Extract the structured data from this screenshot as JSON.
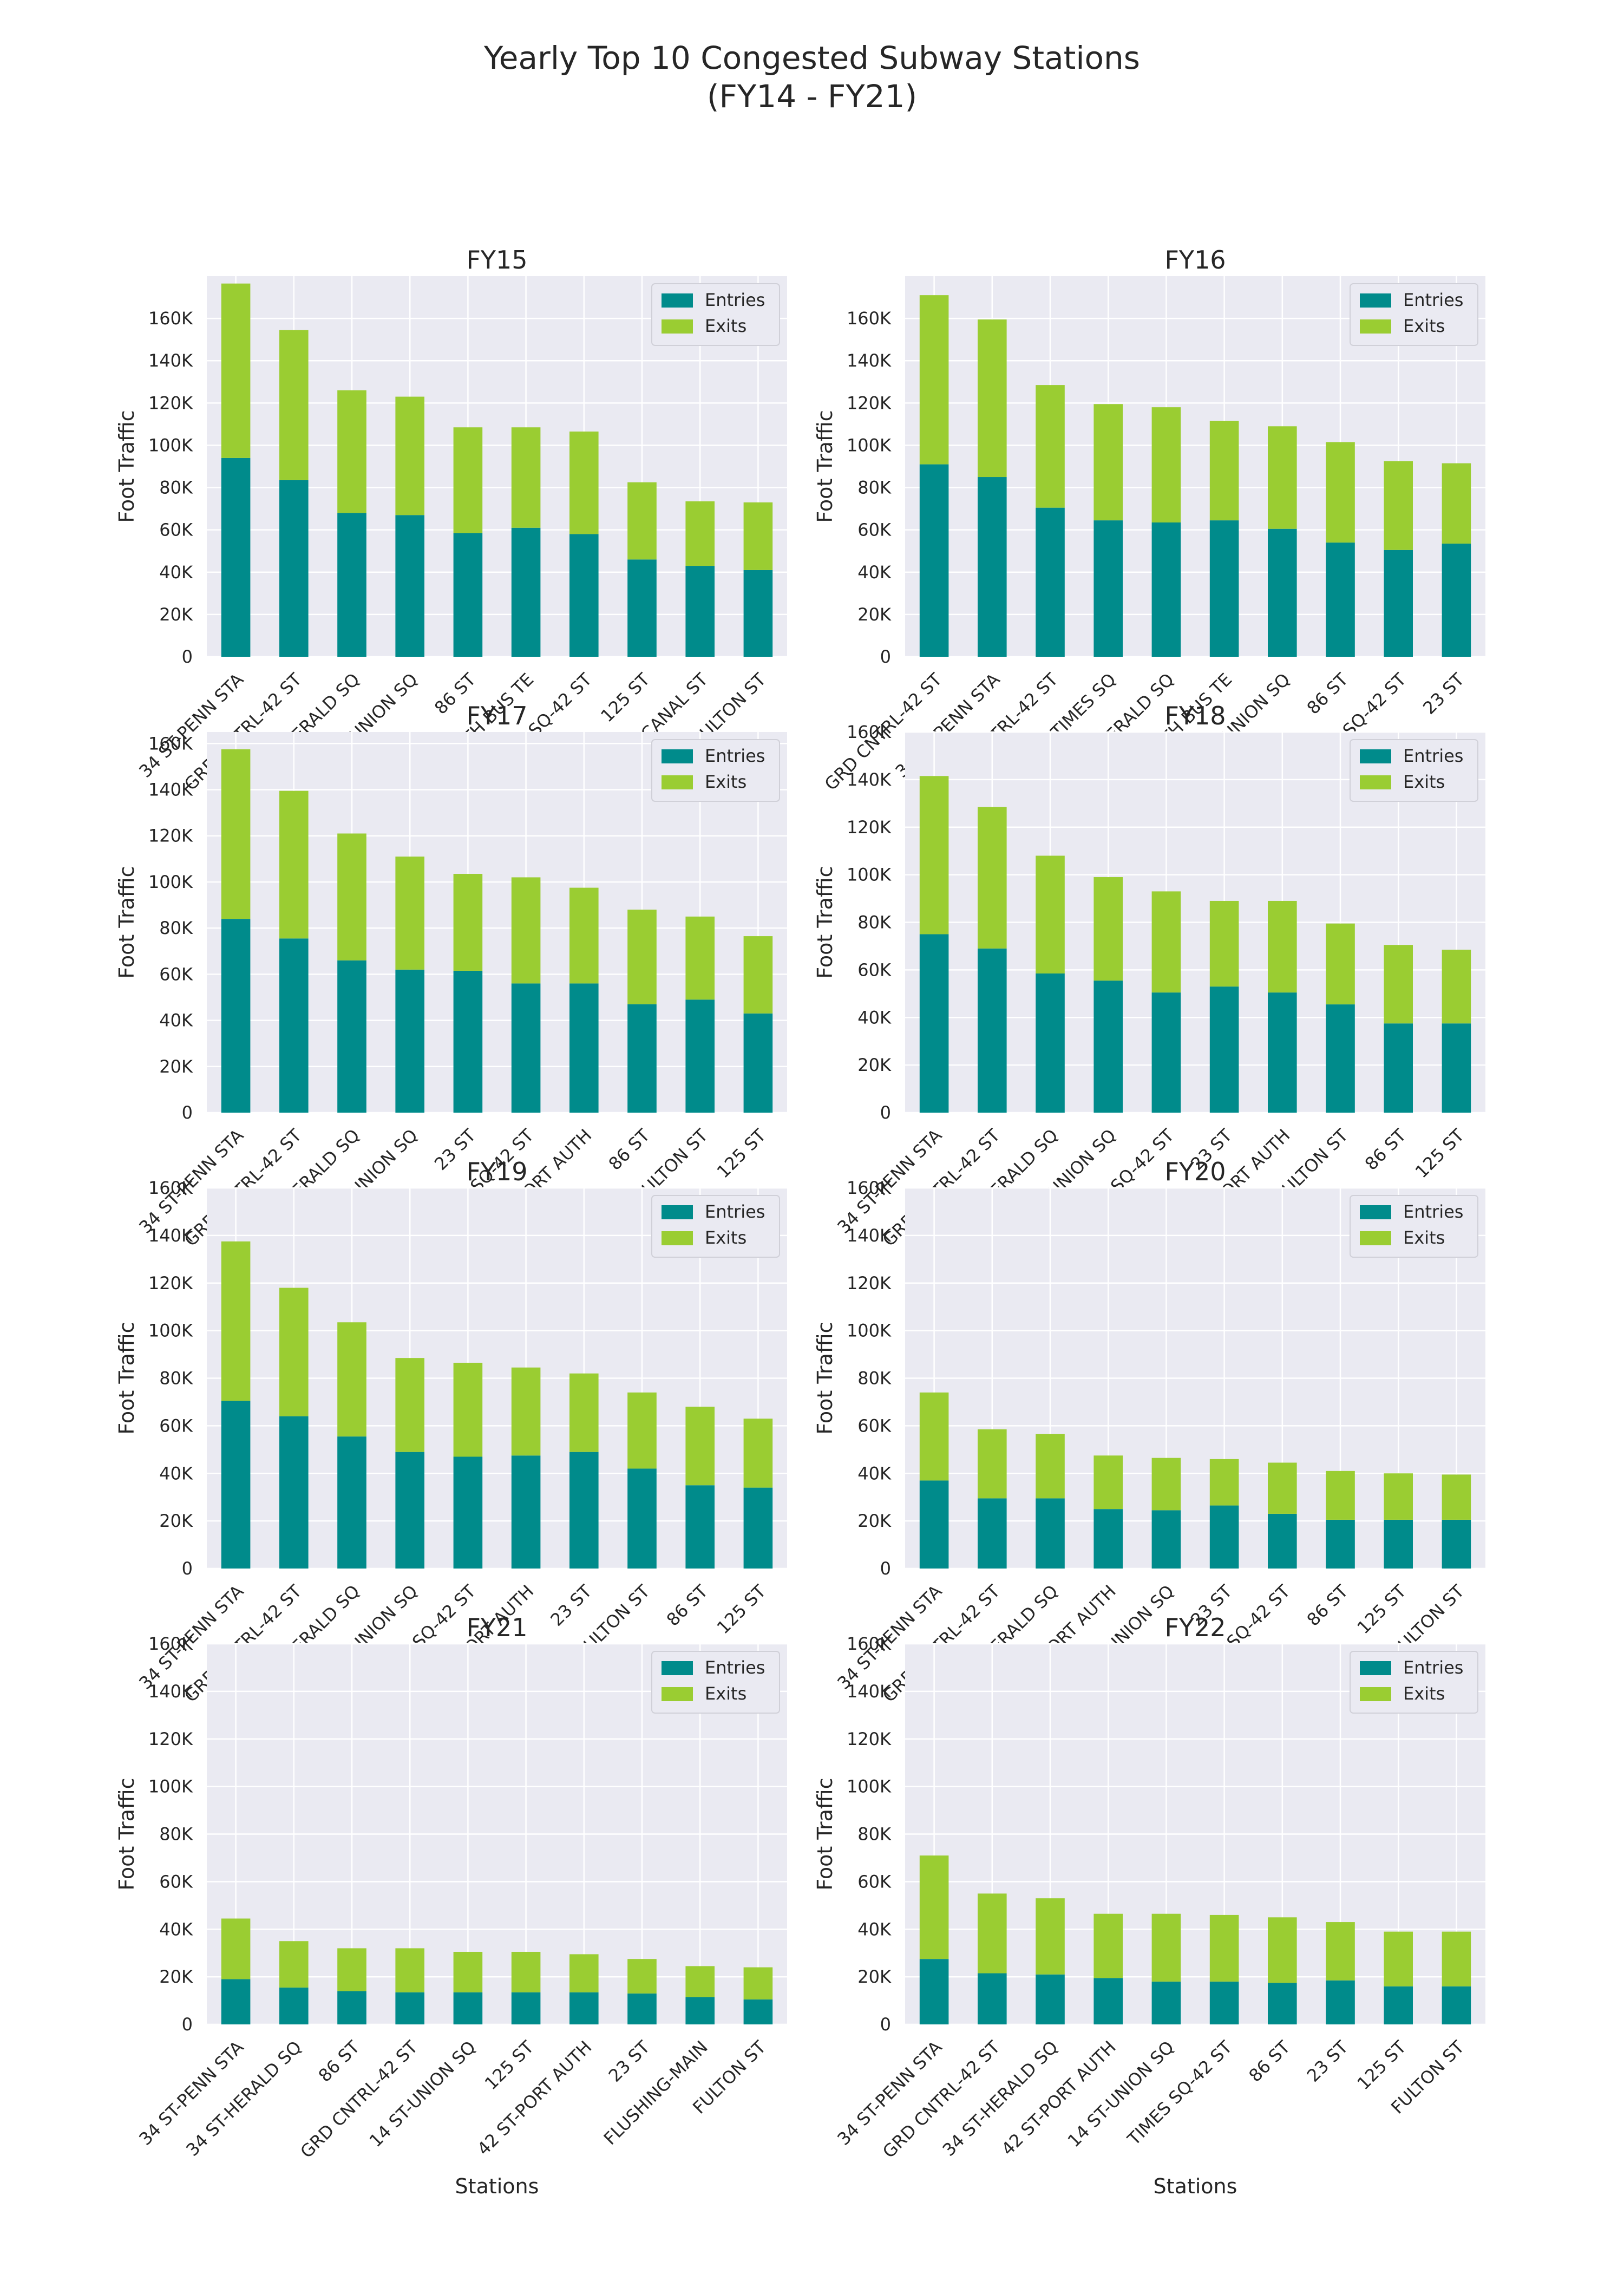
{
  "figure": {
    "title_line1": "Yearly Top 10 Congested Subway Stations",
    "title_line2": "(FY14 - FY21)"
  },
  "colors": {
    "entries": "#008b8b",
    "exits": "#9acd32",
    "plot_bg": "#eaeaf2",
    "grid": "#ffffff",
    "text": "#262626"
  },
  "chart_data": [
    {
      "type": "bar",
      "stacked": true,
      "title": "FY15",
      "xlabel": "",
      "ylabel": "Foot Traffic",
      "ylim": [
        0,
        180000
      ],
      "yticks": [
        0,
        20000,
        40000,
        60000,
        80000,
        100000,
        120000,
        140000,
        160000
      ],
      "ytick_labels": [
        "0",
        "20K",
        "40K",
        "60K",
        "80K",
        "100K",
        "120K",
        "140K",
        "160K"
      ],
      "legend_position": "upper right",
      "grid": true,
      "categories": [
        "34 ST-PENN STA",
        "GRD CNTRL-42 ST",
        "34 ST-HERALD SQ",
        "14 ST-UNION SQ",
        "86 ST",
        "PATH WTC/42 ST-PORT AUTH BUS TE",
        "TIMES SQ-42 ST",
        "125 ST",
        "CANAL ST",
        "FULTON ST"
      ],
      "series": [
        {
          "name": "Entries",
          "values": [
            94000,
            83500,
            68000,
            67000,
            58500,
            61000,
            58000,
            46000,
            43000,
            41000
          ]
        },
        {
          "name": "Exits",
          "values": [
            82500,
            71000,
            58000,
            56000,
            50000,
            47500,
            48500,
            36500,
            30500,
            32000
          ]
        }
      ]
    },
    {
      "type": "bar",
      "stacked": true,
      "title": "FY16",
      "xlabel": "",
      "ylabel": "Foot Traffic",
      "ylim": [
        0,
        180000
      ],
      "yticks": [
        0,
        20000,
        40000,
        60000,
        80000,
        100000,
        120000,
        140000,
        160000
      ],
      "ytick_labels": [
        "0",
        "20K",
        "40K",
        "60K",
        "80K",
        "100K",
        "120K",
        "140K",
        "160K"
      ],
      "legend_position": "upper right",
      "grid": true,
      "categories": [
        "GRD CNTRL-42 ST",
        "34 ST-PENN STA",
        "GRD CNTRL-42 ST",
        "TIMES SQ",
        "34 ST-HERALD SQ",
        "PATH WTC/42 ST-PORT AUTH BUS TE",
        "14 ST-UNION SQ",
        "86 ST",
        "TIMES SQ-42 ST",
        "23 ST"
      ],
      "series": [
        {
          "name": "Entries",
          "values": [
            91000,
            85000,
            70500,
            64500,
            63500,
            64500,
            60500,
            54000,
            50500,
            53500
          ]
        },
        {
          "name": "Exits",
          "values": [
            80000,
            74500,
            58000,
            55000,
            54500,
            47000,
            48500,
            47500,
            42000,
            38000
          ]
        }
      ]
    },
    {
      "type": "bar",
      "stacked": true,
      "title": "FY17",
      "xlabel": "",
      "ylabel": "Foot Traffic",
      "ylim": [
        0,
        165000
      ],
      "yticks": [
        0,
        20000,
        40000,
        60000,
        80000,
        100000,
        120000,
        140000,
        160000
      ],
      "ytick_labels": [
        "0",
        "20K",
        "40K",
        "60K",
        "80K",
        "100K",
        "120K",
        "140K",
        "160K"
      ],
      "legend_position": "upper right",
      "grid": true,
      "categories": [
        "34 ST-PENN STA",
        "GRD CNTRL-42 ST",
        "34 ST-HERALD SQ",
        "14 ST-UNION SQ",
        "23 ST",
        "TIMES SQ-42 ST",
        "42 ST-PORT AUTH",
        "86 ST",
        "FULTON ST",
        "125 ST"
      ],
      "series": [
        {
          "name": "Entries",
          "values": [
            84000,
            75500,
            66000,
            62000,
            61500,
            56000,
            56000,
            47000,
            49000,
            43000
          ]
        },
        {
          "name": "Exits",
          "values": [
            73500,
            64000,
            55000,
            49000,
            42000,
            46000,
            41500,
            41000,
            36000,
            33500
          ]
        }
      ]
    },
    {
      "type": "bar",
      "stacked": true,
      "title": "FY18",
      "xlabel": "",
      "ylabel": "Foot Traffic",
      "ylim": [
        0,
        160000
      ],
      "yticks": [
        0,
        20000,
        40000,
        60000,
        80000,
        100000,
        120000,
        140000,
        160000
      ],
      "ytick_labels": [
        "0",
        "20K",
        "40K",
        "60K",
        "80K",
        "100K",
        "120K",
        "140K",
        "160K"
      ],
      "legend_position": "upper right",
      "grid": true,
      "categories": [
        "34 ST-PENN STA",
        "GRD CNTRL-42 ST",
        "34 ST-HERALD SQ",
        "14 ST-UNION SQ",
        "TIMES SQ-42 ST",
        "23 ST",
        "42 ST-PORT AUTH",
        "FULTON ST",
        "86 ST",
        "125 ST"
      ],
      "series": [
        {
          "name": "Entries",
          "values": [
            75000,
            69000,
            58500,
            55500,
            50500,
            53000,
            50500,
            45500,
            37500,
            37500
          ]
        },
        {
          "name": "Exits",
          "values": [
            66500,
            59500,
            49500,
            43500,
            42500,
            36000,
            38500,
            34000,
            33000,
            31000
          ]
        }
      ]
    },
    {
      "type": "bar",
      "stacked": true,
      "title": "FY19",
      "xlabel": "",
      "ylabel": "Foot Traffic",
      "ylim": [
        0,
        160000
      ],
      "yticks": [
        0,
        20000,
        40000,
        60000,
        80000,
        100000,
        120000,
        140000,
        160000
      ],
      "ytick_labels": [
        "0",
        "20K",
        "40K",
        "60K",
        "80K",
        "100K",
        "120K",
        "140K",
        "160K"
      ],
      "legend_position": "upper right",
      "grid": true,
      "categories": [
        "34 ST-PENN STA",
        "GRD CNTRL-42 ST",
        "34 ST-HERALD SQ",
        "14 ST-UNION SQ",
        "TIMES SQ-42 ST",
        "42 ST-PORT AUTH",
        "23 ST",
        "FULTON ST",
        "86 ST",
        "125 ST"
      ],
      "series": [
        {
          "name": "Entries",
          "values": [
            70500,
            64000,
            55500,
            49000,
            47000,
            47500,
            49000,
            42000,
            35000,
            34000
          ]
        },
        {
          "name": "Exits",
          "values": [
            67000,
            54000,
            48000,
            39500,
            39500,
            37000,
            33000,
            32000,
            33000,
            29000
          ]
        }
      ]
    },
    {
      "type": "bar",
      "stacked": true,
      "title": "FY20",
      "xlabel": "",
      "ylabel": "Foot Traffic",
      "ylim": [
        0,
        160000
      ],
      "yticks": [
        0,
        20000,
        40000,
        60000,
        80000,
        100000,
        120000,
        140000,
        160000
      ],
      "ytick_labels": [
        "0",
        "20K",
        "40K",
        "60K",
        "80K",
        "100K",
        "120K",
        "140K",
        "160K"
      ],
      "legend_position": "upper right",
      "grid": true,
      "categories": [
        "34 ST-PENN STA",
        "GRD CNTRL-42 ST",
        "34 ST-HERALD SQ",
        "42 ST-PORT AUTH",
        "14 ST-UNION SQ",
        "23 ST",
        "TIMES SQ-42 ST",
        "86 ST",
        "125 ST",
        "FULTON ST"
      ],
      "series": [
        {
          "name": "Entries",
          "values": [
            37000,
            29500,
            29500,
            25000,
            24500,
            26500,
            23000,
            20500,
            20500,
            20500
          ]
        },
        {
          "name": "Exits",
          "values": [
            37000,
            29000,
            27000,
            22500,
            22000,
            19500,
            21500,
            20500,
            19500,
            19000
          ]
        }
      ]
    },
    {
      "type": "bar",
      "stacked": true,
      "title": "FY21",
      "xlabel": "Stations",
      "ylabel": "Foot Traffic",
      "ylim": [
        0,
        160000
      ],
      "yticks": [
        0,
        20000,
        40000,
        60000,
        80000,
        100000,
        120000,
        140000,
        160000
      ],
      "ytick_labels": [
        "0",
        "20K",
        "40K",
        "60K",
        "80K",
        "100K",
        "120K",
        "140K",
        "160K"
      ],
      "legend_position": "upper right",
      "grid": true,
      "categories": [
        "34 ST-PENN STA",
        "34 ST-HERALD SQ",
        "86 ST",
        "GRD CNTRL-42 ST",
        "14 ST-UNION SQ",
        "125 ST",
        "42 ST-PORT AUTH",
        "23 ST",
        "FLUSHING-MAIN",
        "FULTON ST"
      ],
      "series": [
        {
          "name": "Entries",
          "values": [
            19000,
            15500,
            14000,
            13500,
            13500,
            13500,
            13500,
            13000,
            11500,
            10500
          ]
        },
        {
          "name": "Exits",
          "values": [
            25500,
            19500,
            18000,
            18500,
            17000,
            17000,
            16000,
            14500,
            13000,
            13500
          ]
        }
      ]
    },
    {
      "type": "bar",
      "stacked": true,
      "title": "FY22",
      "xlabel": "Stations",
      "ylabel": "Foot Traffic",
      "ylim": [
        0,
        160000
      ],
      "yticks": [
        0,
        20000,
        40000,
        60000,
        80000,
        100000,
        120000,
        140000,
        160000
      ],
      "ytick_labels": [
        "0",
        "20K",
        "40K",
        "60K",
        "80K",
        "100K",
        "120K",
        "140K",
        "160K"
      ],
      "legend_position": "upper right",
      "grid": true,
      "categories": [
        "34 ST-PENN STA",
        "GRD CNTRL-42 ST",
        "34 ST-HERALD SQ",
        "42 ST-PORT AUTH",
        "14 ST-UNION SQ",
        "TIMES SQ-42 ST",
        "86 ST",
        "23 ST",
        "125 ST",
        "FULTON ST"
      ],
      "series": [
        {
          "name": "Entries",
          "values": [
            27500,
            21500,
            21000,
            19500,
            18000,
            18000,
            17500,
            18500,
            16000,
            16000
          ]
        },
        {
          "name": "Exits",
          "values": [
            43500,
            33500,
            32000,
            27000,
            28500,
            28000,
            27500,
            24500,
            23000,
            23000
          ]
        }
      ]
    }
  ]
}
